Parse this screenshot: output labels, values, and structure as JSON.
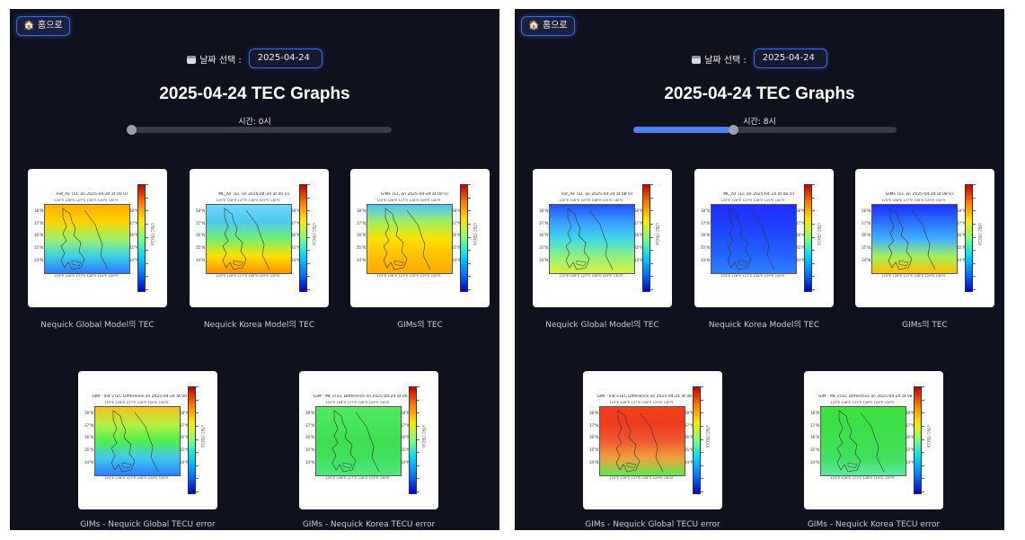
{
  "panels": [
    {
      "home_label": "🏠 홈으로",
      "date_label": "날짜 선택 :",
      "date_value": "2025-04-24",
      "title": "2025-04-24 TEC Graphs",
      "hour_label": "시간: 0시",
      "slider_fraction": 0.0,
      "graphs": [
        {
          "plot_title": "Init_Az TEC on 2025-04-24 at 00 UT",
          "caption": "Nequick Global Model의 TEC",
          "colors": [
            "#ffb000",
            "#ffd200",
            "#9ef06a",
            "#3fd0e8",
            "#2b7cff"
          ]
        },
        {
          "plot_title": "ML_Az TEC on 2025-04-24 at 00 UT",
          "caption": "Nequick Korea Model의 TEC",
          "colors": [
            "#6fd8f8",
            "#50c8f0",
            "#70f070",
            "#ffe000",
            "#ff9000"
          ]
        },
        {
          "plot_title": "GIMs TEC on 2025-04-24 at 00 UT",
          "caption": "GIMs의 TEC",
          "colors": [
            "#4fc0ff",
            "#9ff060",
            "#ffe000",
            "#ffc000",
            "#ffaa00"
          ]
        },
        {
          "plot_title": "GIM - Init vTEC Difference on 2025-04-24 at 00 UT",
          "caption": "GIMs - Nequick Global TECU error",
          "colors": [
            "#f0c020",
            "#b8f040",
            "#50ee50",
            "#40c8f0",
            "#2b80ff"
          ]
        },
        {
          "plot_title": "GIM - ML vTEC Difference on 2025-04-24 at 00 UT",
          "caption": "GIMs - Nequick Korea TECU error",
          "colors": [
            "#58e860",
            "#45e65a",
            "#3ee050",
            "#40e060",
            "#50e880"
          ]
        }
      ]
    },
    {
      "home_label": "🏠 홈으로",
      "date_label": "날짜 선택 :",
      "date_value": "2025-04-24",
      "title": "2025-04-24 TEC Graphs",
      "hour_label": "시간: 8시",
      "slider_fraction": 0.37,
      "graphs": [
        {
          "plot_title": "Init_Az TEC on 2025-04-24 at 08 UT",
          "caption": "Nequick Global Model의 TEC",
          "colors": [
            "#2050ff",
            "#3a9cff",
            "#40d8e8",
            "#8ef080",
            "#d8f040"
          ]
        },
        {
          "plot_title": "ML_Az TEC on 2025-04-24 at 08 UT",
          "caption": "Nequick Korea Model의 TEC",
          "colors": [
            "#1e2cff",
            "#1f3bff",
            "#2050ff",
            "#2464ff",
            "#3080ff"
          ]
        },
        {
          "plot_title": "GIMs TEC on 2025-04-24 at 08 UT",
          "caption": "GIMs의 TEC",
          "colors": [
            "#1a30ff",
            "#2a70ff",
            "#40b0ff",
            "#a0f060",
            "#ffc000"
          ]
        },
        {
          "plot_title": "GIM - Init vTEC Difference on 2025-04-24 at 08 UT",
          "caption": "GIMs - Nequick Global TECU error",
          "colors": [
            "#f04020",
            "#f03a20",
            "#f05a30",
            "#f0a040",
            "#60e850"
          ]
        },
        {
          "plot_title": "GIM - ML vTEC Difference on 2025-04-24 at 08 UT",
          "caption": "GIMs - Nequick Korea TECU error",
          "colors": [
            "#40e040",
            "#3ae048",
            "#40e050",
            "#40e060",
            "#60e8a0"
          ]
        }
      ]
    }
  ],
  "map_axes": {
    "lat_ticks": [
      "38°N",
      "37°N",
      "36°N",
      "35°N",
      "34°N"
    ],
    "lon_ticks": "125°E 126°E 127°E 128°E 129°E 130°E",
    "colorbar_label": "vTEC (TECU)"
  },
  "icons": {
    "home": "home-icon",
    "calendar": "calendar-icon"
  },
  "colors": {
    "background": "#10111e",
    "accent": "#4f7ff0",
    "card": "#ffffff"
  }
}
